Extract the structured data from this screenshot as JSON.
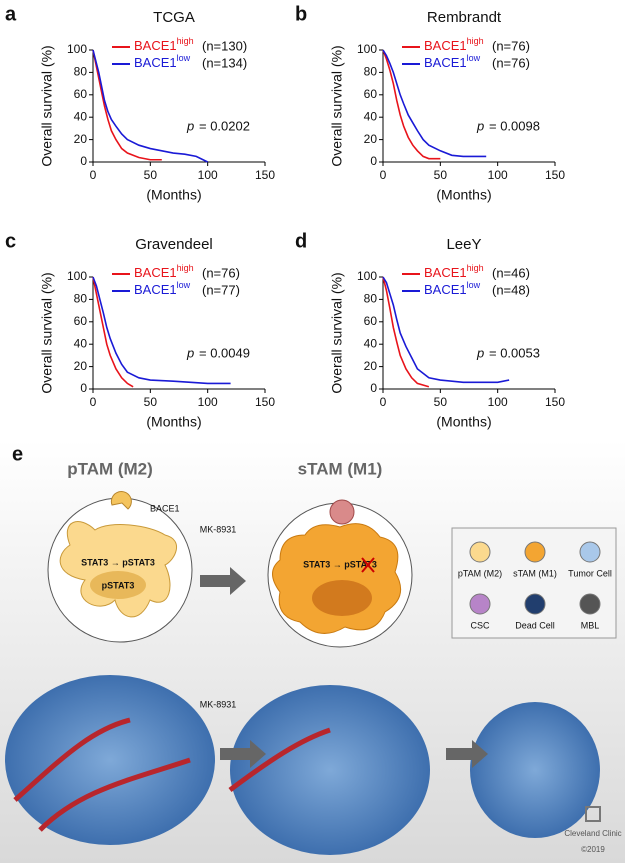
{
  "chart_data": [
    {
      "panel": "a",
      "type": "line",
      "title": "TCGA",
      "x_label": "(Months)",
      "y_label": "Overall survival (%)",
      "xlim": [
        0,
        150
      ],
      "xticks": [
        0,
        50,
        100,
        150
      ],
      "ylim": [
        0,
        100
      ],
      "yticks": [
        0,
        20,
        40,
        60,
        80,
        100
      ],
      "annotation": {
        "symbol": "p",
        "text": "= 0.0202"
      },
      "series": [
        {
          "name": "BACE1",
          "name_sup": "high",
          "n_label": "(n=130)",
          "color": "#e8141b",
          "x": [
            0,
            2,
            5,
            8,
            10,
            13,
            16,
            20,
            25,
            30,
            40,
            50,
            60
          ],
          "values": [
            100,
            90,
            75,
            60,
            50,
            38,
            28,
            20,
            12,
            8,
            4,
            2,
            2
          ]
        },
        {
          "name": "BACE1",
          "name_sup": "low",
          "n_label": "(n=134)",
          "color": "#1a1ad6",
          "x": [
            0,
            2,
            5,
            8,
            10,
            13,
            16,
            20,
            25,
            30,
            40,
            50,
            60,
            70,
            80,
            90,
            100
          ],
          "values": [
            100,
            92,
            80,
            65,
            55,
            45,
            38,
            32,
            25,
            20,
            15,
            12,
            10,
            8,
            7,
            5,
            0
          ]
        }
      ]
    },
    {
      "panel": "b",
      "type": "line",
      "title": "Rembrandt",
      "x_label": "(Months)",
      "y_label": "Overall survival (%)",
      "xlim": [
        0,
        150
      ],
      "xticks": [
        0,
        50,
        100,
        150
      ],
      "ylim": [
        0,
        100
      ],
      "yticks": [
        0,
        20,
        40,
        60,
        80,
        100
      ],
      "annotation": {
        "symbol": "p",
        "text": "= 0.0098"
      },
      "series": [
        {
          "name": "BACE1",
          "name_sup": "high",
          "n_label": "(n=76)",
          "color": "#e8141b",
          "x": [
            0,
            3,
            6,
            9,
            12,
            15,
            18,
            22,
            26,
            30,
            35,
            40,
            50
          ],
          "values": [
            100,
            92,
            82,
            70,
            55,
            42,
            32,
            22,
            15,
            10,
            5,
            3,
            3
          ]
        },
        {
          "name": "BACE1",
          "name_sup": "low",
          "n_label": "(n=76)",
          "color": "#1a1ad6",
          "x": [
            0,
            3,
            6,
            9,
            12,
            15,
            18,
            22,
            26,
            30,
            35,
            40,
            50,
            60,
            70,
            90
          ],
          "values": [
            100,
            95,
            88,
            80,
            70,
            60,
            52,
            42,
            35,
            28,
            20,
            15,
            10,
            6,
            5,
            5
          ]
        }
      ]
    },
    {
      "panel": "c",
      "type": "line",
      "title": "Gravendeel",
      "x_label": "(Months)",
      "y_label": "Overall survival (%)",
      "xlim": [
        0,
        150
      ],
      "xticks": [
        0,
        50,
        100,
        150
      ],
      "ylim": [
        0,
        100
      ],
      "yticks": [
        0,
        20,
        40,
        60,
        80,
        100
      ],
      "annotation": {
        "symbol": "p",
        "text": "= 0.0049"
      },
      "series": [
        {
          "name": "BACE1",
          "name_sup": "high",
          "n_label": "(n=76)",
          "color": "#e8141b",
          "x": [
            0,
            3,
            6,
            9,
            12,
            15,
            20,
            25,
            30,
            35
          ],
          "values": [
            100,
            85,
            70,
            55,
            40,
            30,
            18,
            10,
            5,
            2
          ]
        },
        {
          "name": "BACE1",
          "name_sup": "low",
          "n_label": "(n=77)",
          "color": "#1a1ad6",
          "x": [
            0,
            3,
            6,
            9,
            12,
            15,
            20,
            25,
            30,
            40,
            50,
            70,
            100,
            120
          ],
          "values": [
            100,
            92,
            80,
            68,
            55,
            45,
            32,
            22,
            15,
            10,
            8,
            7,
            5,
            5
          ]
        }
      ]
    },
    {
      "panel": "d",
      "type": "line",
      "title": "LeeY",
      "x_label": "(Months)",
      "y_label": "Overall survival (%)",
      "xlim": [
        0,
        150
      ],
      "xticks": [
        0,
        50,
        100,
        150
      ],
      "ylim": [
        0,
        100
      ],
      "yticks": [
        0,
        20,
        40,
        60,
        80,
        100
      ],
      "annotation": {
        "symbol": "p",
        "text": "= 0.0053"
      },
      "series": [
        {
          "name": "BACE1",
          "name_sup": "high",
          "n_label": "(n=46)",
          "color": "#e8141b",
          "x": [
            0,
            3,
            6,
            9,
            12,
            15,
            20,
            25,
            30,
            40
          ],
          "values": [
            100,
            88,
            72,
            55,
            42,
            30,
            18,
            10,
            5,
            2
          ]
        },
        {
          "name": "BACE1",
          "name_sup": "low",
          "n_label": "(n=48)",
          "color": "#1a1ad6",
          "x": [
            0,
            3,
            6,
            9,
            12,
            15,
            20,
            25,
            30,
            40,
            50,
            70,
            100,
            110
          ],
          "values": [
            100,
            95,
            85,
            75,
            62,
            50,
            38,
            28,
            18,
            10,
            8,
            6,
            6,
            8
          ]
        }
      ]
    }
  ],
  "illustration": {
    "panel": "e",
    "left_title": "pTAM (M2)",
    "right_title": "sTAM (M1)",
    "bace1": "BACE1",
    "drug_top": "MK-8931",
    "drug_bottom": "MK-8931",
    "left_pathway": "STAT3 → pSTAT3",
    "left_nucleus": "pSTAT3",
    "right_pathway": "STAT3 → pSTAT3",
    "legend": [
      "pTAM (M2)",
      "sTAM (M1)",
      "Tumor Cell",
      "CSC",
      "Dead Cell",
      "MBL"
    ],
    "credit": "Cleveland Clinic",
    "copyright": "©2019"
  }
}
